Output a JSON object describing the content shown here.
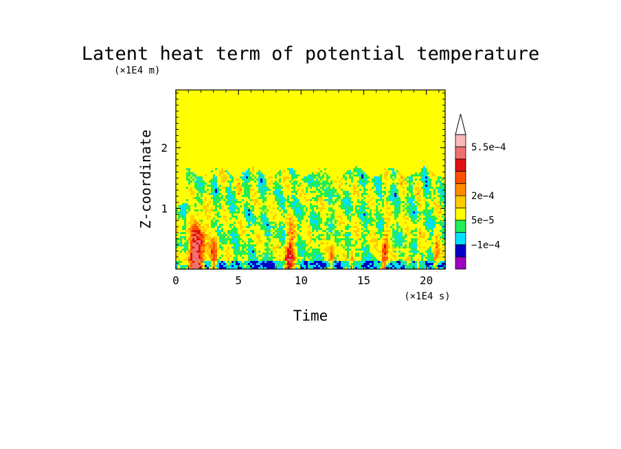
{
  "chart_data": {
    "type": "heatmap",
    "title": "Latent heat term of potential temperature",
    "xlabel": "Time",
    "ylabel": "Z-coordinate",
    "x_unit_label": "(×1E4 s)",
    "y_unit_label": "(×1E4 m)",
    "xlim": [
      0,
      21.5
    ],
    "ylim": [
      0,
      2.95
    ],
    "xticks": [
      {
        "value": 0,
        "label": "0"
      },
      {
        "value": 5,
        "label": "5"
      },
      {
        "value": 10,
        "label": "10"
      },
      {
        "value": 15,
        "label": "15"
      },
      {
        "value": 20,
        "label": "20"
      }
    ],
    "yticks": [
      {
        "value": 1,
        "label": "1"
      },
      {
        "value": 2,
        "label": "2"
      }
    ],
    "background_level_color": "#ffff00",
    "colorbar": {
      "levels": [
        "#a000c0",
        "#0000c8",
        "#00e0ff",
        "#22ee55",
        "#ffff00",
        "#ffcc00",
        "#ff8c00",
        "#ff5000",
        "#e01010",
        "#f07070",
        "#f8b8b8",
        "#ffffff"
      ],
      "labels": [
        {
          "index": 2,
          "text": "−1e−4"
        },
        {
          "index": 4,
          "text": "5e−5"
        },
        {
          "index": 6,
          "text": "2e−4"
        },
        {
          "index": 10,
          "text": "5.5e−4"
        }
      ]
    },
    "features": {
      "green_layer_top": 1.6,
      "heating_bursts": [
        {
          "t": 1.6,
          "z_top": 1.1,
          "width": 1.3,
          "peak": 0.8
        },
        {
          "t": 3.0,
          "z_top": 0.9,
          "width": 0.6,
          "peak": 0.4
        },
        {
          "t": 9.0,
          "z_top": 0.9,
          "width": 0.8,
          "peak": 0.6
        },
        {
          "t": 12.4,
          "z_top": 0.8,
          "width": 0.4,
          "peak": 0.4
        },
        {
          "t": 14.0,
          "z_top": 0.8,
          "width": 0.4,
          "peak": 0.3
        },
        {
          "t": 16.6,
          "z_top": 0.9,
          "width": 0.5,
          "peak": 0.6
        },
        {
          "t": 19.3,
          "z_top": 0.8,
          "width": 0.3,
          "peak": 0.3
        },
        {
          "t": 20.7,
          "z_top": 0.8,
          "width": 0.4,
          "peak": 0.4
        }
      ]
    }
  }
}
